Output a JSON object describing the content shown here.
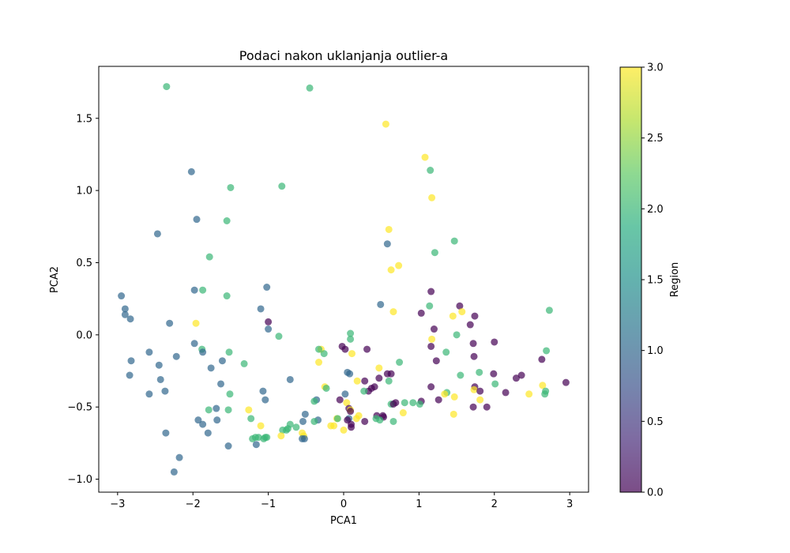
{
  "chart_data": {
    "type": "scatter",
    "title": "Podaci nakon uklanjanja outlier-a",
    "xlabel": "PCA1",
    "ylabel": "PCA2",
    "xlim": [
      -3.25,
      3.25
    ],
    "ylim": [
      -1.09,
      1.86
    ],
    "xticks": [
      -3,
      -2,
      -1,
      0,
      1,
      2,
      3
    ],
    "yticks": [
      -1.0,
      -0.5,
      0.0,
      0.5,
      1.0,
      1.5
    ],
    "grid": false,
    "colorbar": {
      "label": "Region",
      "range": [
        0.0,
        3.0
      ],
      "ticks": [
        0.0,
        0.5,
        1.0,
        1.5,
        2.0,
        2.5,
        3.0
      ],
      "colormap": "viridis",
      "alpha": 0.7
    },
    "points": [
      {
        "x": -2.35,
        "y": 1.72,
        "c": 2
      },
      {
        "x": -0.45,
        "y": 1.71,
        "c": 2
      },
      {
        "x": 0.56,
        "y": 1.46,
        "c": 3
      },
      {
        "x": 1.08,
        "y": 1.23,
        "c": 3
      },
      {
        "x": 1.15,
        "y": 1.14,
        "c": 2
      },
      {
        "x": -2.02,
        "y": 1.13,
        "c": 1
      },
      {
        "x": -1.5,
        "y": 1.02,
        "c": 2
      },
      {
        "x": -0.82,
        "y": 1.03,
        "c": 2
      },
      {
        "x": 1.17,
        "y": 0.95,
        "c": 3
      },
      {
        "x": -1.95,
        "y": 0.8,
        "c": 1
      },
      {
        "x": -1.55,
        "y": 0.79,
        "c": 2
      },
      {
        "x": 0.6,
        "y": 0.73,
        "c": 3
      },
      {
        "x": -2.47,
        "y": 0.7,
        "c": 1
      },
      {
        "x": 0.58,
        "y": 0.63,
        "c": 1
      },
      {
        "x": 1.47,
        "y": 0.65,
        "c": 2
      },
      {
        "x": 1.21,
        "y": 0.57,
        "c": 2
      },
      {
        "x": -1.78,
        "y": 0.54,
        "c": 2
      },
      {
        "x": 0.73,
        "y": 0.48,
        "c": 3
      },
      {
        "x": 0.63,
        "y": 0.45,
        "c": 3
      },
      {
        "x": -1.02,
        "y": 0.33,
        "c": 1
      },
      {
        "x": -1.98,
        "y": 0.31,
        "c": 1
      },
      {
        "x": -1.87,
        "y": 0.31,
        "c": 2
      },
      {
        "x": 1.16,
        "y": 0.3,
        "c": 0
      },
      {
        "x": -2.95,
        "y": 0.27,
        "c": 1
      },
      {
        "x": -1.55,
        "y": 0.27,
        "c": 2
      },
      {
        "x": 0.49,
        "y": 0.21,
        "c": 1
      },
      {
        "x": 1.54,
        "y": 0.2,
        "c": 0
      },
      {
        "x": 1.14,
        "y": 0.2,
        "c": 2
      },
      {
        "x": -2.9,
        "y": 0.18,
        "c": 1
      },
      {
        "x": -1.1,
        "y": 0.18,
        "c": 1
      },
      {
        "x": 2.73,
        "y": 0.17,
        "c": 2
      },
      {
        "x": 0.66,
        "y": 0.16,
        "c": 3
      },
      {
        "x": 1.57,
        "y": 0.16,
        "c": 3
      },
      {
        "x": 1.03,
        "y": 0.15,
        "c": 0
      },
      {
        "x": -2.9,
        "y": 0.14,
        "c": 1
      },
      {
        "x": 1.45,
        "y": 0.13,
        "c": 3
      },
      {
        "x": 1.74,
        "y": 0.13,
        "c": 0
      },
      {
        "x": -2.83,
        "y": 0.11,
        "c": 1
      },
      {
        "x": -1.0,
        "y": 0.09,
        "c": 0
      },
      {
        "x": -2.31,
        "y": 0.08,
        "c": 1
      },
      {
        "x": -1.96,
        "y": 0.08,
        "c": 3
      },
      {
        "x": 1.68,
        "y": 0.07,
        "c": 0
      },
      {
        "x": -1.0,
        "y": 0.04,
        "c": 1
      },
      {
        "x": 1.2,
        "y": 0.04,
        "c": 0
      },
      {
        "x": 0.09,
        "y": 0.01,
        "c": 2
      },
      {
        "x": 1.5,
        "y": 0.0,
        "c": 2
      },
      {
        "x": -0.86,
        "y": -0.01,
        "c": 2
      },
      {
        "x": 0.09,
        "y": -0.03,
        "c": 2
      },
      {
        "x": 1.17,
        "y": -0.03,
        "c": 3
      },
      {
        "x": 2.0,
        "y": -0.05,
        "c": 0
      },
      {
        "x": -1.98,
        "y": -0.06,
        "c": 1
      },
      {
        "x": 1.72,
        "y": -0.06,
        "c": 0
      },
      {
        "x": 1.16,
        "y": -0.08,
        "c": 0
      },
      {
        "x": -0.02,
        "y": -0.08,
        "c": 0
      },
      {
        "x": -1.88,
        "y": -0.1,
        "c": 2
      },
      {
        "x": -0.3,
        "y": -0.1,
        "c": 3
      },
      {
        "x": -0.33,
        "y": -0.1,
        "c": 2
      },
      {
        "x": 0.31,
        "y": -0.1,
        "c": 0
      },
      {
        "x": 0.02,
        "y": -0.1,
        "c": 0
      },
      {
        "x": 2.69,
        "y": -0.11,
        "c": 2
      },
      {
        "x": -1.87,
        "y": -0.12,
        "c": 1
      },
      {
        "x": -2.58,
        "y": -0.12,
        "c": 1
      },
      {
        "x": 1.36,
        "y": -0.12,
        "c": 2
      },
      {
        "x": -1.52,
        "y": -0.12,
        "c": 2
      },
      {
        "x": -0.26,
        "y": -0.13,
        "c": 2
      },
      {
        "x": 0.11,
        "y": -0.13,
        "c": 3
      },
      {
        "x": 1.73,
        "y": -0.15,
        "c": 0
      },
      {
        "x": -2.22,
        "y": -0.15,
        "c": 1
      },
      {
        "x": 2.63,
        "y": -0.17,
        "c": 0
      },
      {
        "x": 1.23,
        "y": -0.18,
        "c": 0
      },
      {
        "x": -2.82,
        "y": -0.18,
        "c": 1
      },
      {
        "x": -1.61,
        "y": -0.18,
        "c": 1
      },
      {
        "x": 0.74,
        "y": -0.19,
        "c": 2
      },
      {
        "x": -0.33,
        "y": -0.19,
        "c": 3
      },
      {
        "x": -1.32,
        "y": -0.2,
        "c": 2
      },
      {
        "x": -2.45,
        "y": -0.21,
        "c": 1
      },
      {
        "x": -1.76,
        "y": -0.23,
        "c": 1
      },
      {
        "x": 0.47,
        "y": -0.23,
        "c": 3
      },
      {
        "x": 0.05,
        "y": -0.26,
        "c": 1
      },
      {
        "x": 1.8,
        "y": -0.26,
        "c": 2
      },
      {
        "x": 0.08,
        "y": -0.27,
        "c": 1
      },
      {
        "x": 1.99,
        "y": -0.27,
        "c": 0
      },
      {
        "x": 0.58,
        "y": -0.27,
        "c": 0
      },
      {
        "x": 0.63,
        "y": -0.27,
        "c": 0
      },
      {
        "x": -2.84,
        "y": -0.28,
        "c": 1
      },
      {
        "x": 1.55,
        "y": -0.28,
        "c": 2
      },
      {
        "x": 2.36,
        "y": -0.28,
        "c": 0
      },
      {
        "x": 2.29,
        "y": -0.3,
        "c": 0
      },
      {
        "x": 0.47,
        "y": -0.3,
        "c": 0
      },
      {
        "x": -0.71,
        "y": -0.31,
        "c": 1
      },
      {
        "x": -2.43,
        "y": -0.31,
        "c": 1
      },
      {
        "x": 0.18,
        "y": -0.32,
        "c": 3
      },
      {
        "x": 0.6,
        "y": -0.32,
        "c": 2
      },
      {
        "x": 0.28,
        "y": -0.32,
        "c": 0
      },
      {
        "x": 2.95,
        "y": -0.33,
        "c": 0
      },
      {
        "x": -1.63,
        "y": -0.34,
        "c": 1
      },
      {
        "x": 2.01,
        "y": -0.34,
        "c": 2
      },
      {
        "x": 2.64,
        "y": -0.35,
        "c": 3
      },
      {
        "x": 1.74,
        "y": -0.36,
        "c": 0
      },
      {
        "x": 1.16,
        "y": -0.36,
        "c": 0
      },
      {
        "x": -0.25,
        "y": -0.36,
        "c": 3
      },
      {
        "x": -0.23,
        "y": -0.37,
        "c": 2
      },
      {
        "x": 0.37,
        "y": -0.37,
        "c": 0
      },
      {
        "x": 0.41,
        "y": -0.36,
        "c": 0
      },
      {
        "x": 1.73,
        "y": -0.38,
        "c": 3
      },
      {
        "x": 1.81,
        "y": -0.39,
        "c": 0
      },
      {
        "x": 2.68,
        "y": -0.39,
        "c": 2
      },
      {
        "x": -2.37,
        "y": -0.39,
        "c": 1
      },
      {
        "x": 0.33,
        "y": -0.39,
        "c": 0
      },
      {
        "x": -1.07,
        "y": -0.39,
        "c": 1
      },
      {
        "x": 0.27,
        "y": -0.39,
        "c": 2
      },
      {
        "x": 1.37,
        "y": -0.4,
        "c": 2
      },
      {
        "x": 2.15,
        "y": -0.4,
        "c": 0
      },
      {
        "x": 1.34,
        "y": -0.41,
        "c": 3
      },
      {
        "x": -1.51,
        "y": -0.41,
        "c": 2
      },
      {
        "x": -2.58,
        "y": -0.41,
        "c": 1
      },
      {
        "x": 2.46,
        "y": -0.41,
        "c": 3
      },
      {
        "x": 0.02,
        "y": -0.41,
        "c": 1
      },
      {
        "x": 2.67,
        "y": -0.41,
        "c": 2
      },
      {
        "x": 1.47,
        "y": -0.43,
        "c": 3
      },
      {
        "x": -1.04,
        "y": -0.45,
        "c": 1
      },
      {
        "x": 1.81,
        "y": -0.45,
        "c": 3
      },
      {
        "x": 1.26,
        "y": -0.45,
        "c": 0
      },
      {
        "x": -0.36,
        "y": -0.45,
        "c": 1
      },
      {
        "x": -0.05,
        "y": -0.45,
        "c": 0
      },
      {
        "x": 1.03,
        "y": -0.46,
        "c": 0
      },
      {
        "x": -0.39,
        "y": -0.46,
        "c": 2
      },
      {
        "x": 0.04,
        "y": -0.47,
        "c": 3
      },
      {
        "x": 0.92,
        "y": -0.47,
        "c": 2
      },
      {
        "x": 0.81,
        "y": -0.47,
        "c": 2
      },
      {
        "x": 0.69,
        "y": -0.47,
        "c": 0
      },
      {
        "x": 1.01,
        "y": -0.48,
        "c": 2
      },
      {
        "x": 0.63,
        "y": -0.48,
        "c": 2
      },
      {
        "x": 0.66,
        "y": -0.48,
        "c": 0
      },
      {
        "x": 1.9,
        "y": -0.5,
        "c": 0
      },
      {
        "x": 1.72,
        "y": -0.5,
        "c": 0
      },
      {
        "x": -1.69,
        "y": -0.51,
        "c": 1
      },
      {
        "x": 0.07,
        "y": -0.51,
        "c": 0
      },
      {
        "x": 0.09,
        "y": -0.52,
        "c": 3
      },
      {
        "x": -1.26,
        "y": -0.52,
        "c": 3
      },
      {
        "x": -1.53,
        "y": -0.52,
        "c": 2
      },
      {
        "x": -1.79,
        "y": -0.52,
        "c": 2
      },
      {
        "x": 0.09,
        "y": -0.53,
        "c": 0
      },
      {
        "x": 0.79,
        "y": -0.54,
        "c": 3
      },
      {
        "x": -0.51,
        "y": -0.55,
        "c": 1
      },
      {
        "x": 1.46,
        "y": -0.55,
        "c": 3
      },
      {
        "x": 0.44,
        "y": -0.56,
        "c": 0
      },
      {
        "x": 0.52,
        "y": -0.56,
        "c": 0
      },
      {
        "x": 0.2,
        "y": -0.56,
        "c": 3
      },
      {
        "x": 0.53,
        "y": -0.57,
        "c": 0
      },
      {
        "x": -0.09,
        "y": -0.58,
        "c": 3
      },
      {
        "x": 0.17,
        "y": -0.58,
        "c": 3
      },
      {
        "x": -0.08,
        "y": -0.58,
        "c": 2
      },
      {
        "x": 0.07,
        "y": -0.58,
        "c": 1
      },
      {
        "x": 0.43,
        "y": -0.58,
        "c": 2
      },
      {
        "x": -1.23,
        "y": -0.58,
        "c": 2
      },
      {
        "x": -1.93,
        "y": -0.59,
        "c": 1
      },
      {
        "x": -1.68,
        "y": -0.59,
        "c": 1
      },
      {
        "x": -0.34,
        "y": -0.59,
        "c": 1
      },
      {
        "x": 0.05,
        "y": -0.59,
        "c": 0
      },
      {
        "x": 0.48,
        "y": -0.59,
        "c": 2
      },
      {
        "x": -0.54,
        "y": -0.6,
        "c": 1
      },
      {
        "x": 0.66,
        "y": -0.6,
        "c": 2
      },
      {
        "x": 0.28,
        "y": -0.6,
        "c": 0
      },
      {
        "x": -0.39,
        "y": -0.6,
        "c": 2
      },
      {
        "x": -1.87,
        "y": -0.62,
        "c": 1
      },
      {
        "x": -0.71,
        "y": -0.62,
        "c": 2
      },
      {
        "x": 0.1,
        "y": -0.62,
        "c": 0
      },
      {
        "x": -0.17,
        "y": -0.63,
        "c": 3
      },
      {
        "x": -1.1,
        "y": -0.63,
        "c": 3
      },
      {
        "x": -0.13,
        "y": -0.63,
        "c": 3
      },
      {
        "x": -0.63,
        "y": -0.64,
        "c": 2
      },
      {
        "x": 0.1,
        "y": -0.64,
        "c": 0
      },
      {
        "x": -0.74,
        "y": -0.65,
        "c": 2
      },
      {
        "x": 0.0,
        "y": -0.66,
        "c": 3
      },
      {
        "x": -0.76,
        "y": -0.66,
        "c": 2
      },
      {
        "x": -0.81,
        "y": -0.66,
        "c": 2
      },
      {
        "x": -2.36,
        "y": -0.68,
        "c": 1
      },
      {
        "x": -1.8,
        "y": -0.68,
        "c": 1
      },
      {
        "x": -0.55,
        "y": -0.68,
        "c": 3
      },
      {
        "x": -0.53,
        "y": -0.7,
        "c": 3
      },
      {
        "x": -0.83,
        "y": -0.7,
        "c": 3
      },
      {
        "x": -1.02,
        "y": -0.71,
        "c": 2
      },
      {
        "x": -1.17,
        "y": -0.71,
        "c": 2
      },
      {
        "x": -1.04,
        "y": -0.71,
        "c": 2
      },
      {
        "x": -1.13,
        "y": -0.71,
        "c": 2
      },
      {
        "x": -1.21,
        "y": -0.72,
        "c": 2
      },
      {
        "x": -1.06,
        "y": -0.72,
        "c": 2
      },
      {
        "x": -0.55,
        "y": -0.72,
        "c": 1
      },
      {
        "x": -0.52,
        "y": -0.72,
        "c": 1
      },
      {
        "x": -1.16,
        "y": -0.76,
        "c": 1
      },
      {
        "x": -1.53,
        "y": -0.77,
        "c": 1
      },
      {
        "x": -2.18,
        "y": -0.85,
        "c": 1
      },
      {
        "x": -2.25,
        "y": -0.95,
        "c": 1
      }
    ]
  }
}
